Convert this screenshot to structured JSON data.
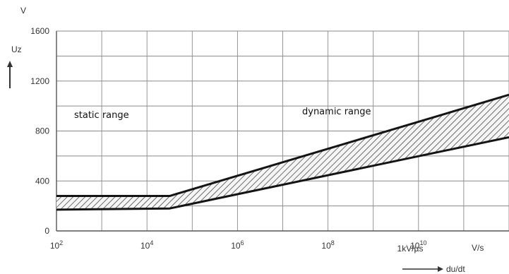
{
  "chart_data": {
    "type": "area",
    "title": "",
    "xlabel": "du/dt",
    "ylabel": "Uz",
    "y_unit": "V",
    "x_unit": "V/s",
    "x_scale": "log",
    "xlim": [
      100,
      1000000000000
    ],
    "ylim": [
      0,
      1600
    ],
    "grid": true,
    "x_ticks": [
      {
        "value": 100,
        "label": "10^2"
      },
      {
        "value": 10000,
        "label": "10^4"
      },
      {
        "value": 1000000,
        "label": "10^6"
      },
      {
        "value": 100000000,
        "label": "10^8"
      },
      {
        "value": 10000000000,
        "label": "10^10"
      }
    ],
    "y_ticks": [
      {
        "value": 0,
        "label": "0"
      },
      {
        "value": 400,
        "label": "400"
      },
      {
        "value": 800,
        "label": "800"
      },
      {
        "value": 1200,
        "label": "1200"
      },
      {
        "value": 1600,
        "label": "1600"
      }
    ],
    "marker_label": "1kV/µs",
    "series": [
      {
        "x": [
          100,
          31623,
          1000000000000
        ],
        "values": [
          280,
          280,
          1090
        ]
      },
      {
        "x": [
          100,
          31623,
          1000000000000
        ],
        "values": [
          170,
          180,
          750
        ]
      }
    ],
    "regions": [
      {
        "label": "static range"
      },
      {
        "label": "dynamic range"
      }
    ]
  }
}
